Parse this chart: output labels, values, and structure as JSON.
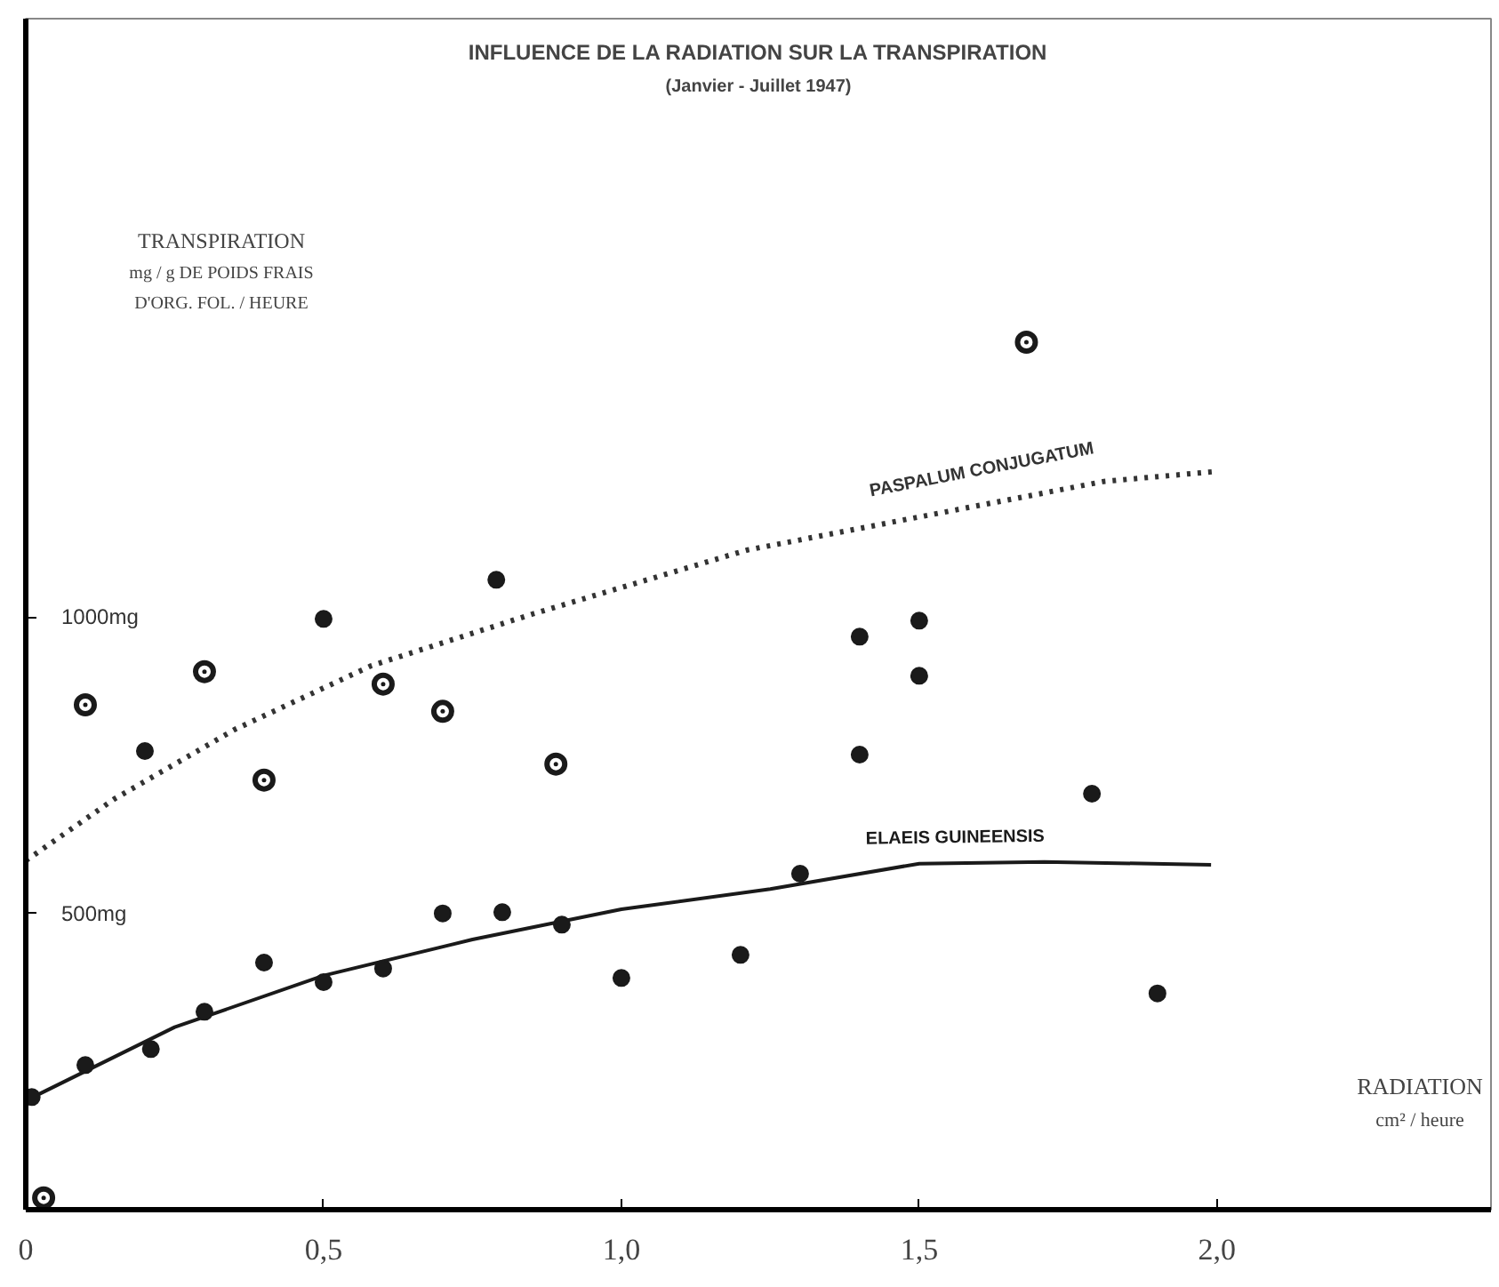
{
  "chart_data": {
    "type": "scatter",
    "title": "INFLUENCE DE LA RADIATION SUR LA TRANSPIRATION",
    "subtitle": "(Janvier - Juillet 1947)",
    "ylabel": "TRANSPIRATION\nmg / g DE POIDS FRAIS\nD'ORG. FOL. / HEURE",
    "xlabel": "RADIATION\ncm² / heure",
    "xlim": [
      0,
      2.46
    ],
    "ylim": [
      0,
      2010
    ],
    "xticks": [
      {
        "value": 0,
        "label": "0"
      },
      {
        "value": 0.5,
        "label": "0,5"
      },
      {
        "value": 1,
        "label": "1,0"
      },
      {
        "value": 1.5,
        "label": "1,5"
      },
      {
        "value": 2,
        "label": "2,0"
      }
    ],
    "yticks": [
      {
        "value": 500,
        "label": "500mg"
      },
      {
        "value": 1000,
        "label": "1000mg"
      }
    ],
    "grid": false,
    "series": [
      {
        "marker": "circle_dot",
        "color": "#1a1a1a",
        "x": [
          0.03,
          0.1,
          0.3,
          0.4,
          0.6,
          0.7,
          0.89,
          1.68
        ],
        "values": [
          20,
          852,
          908,
          725,
          887,
          841,
          752,
          1464
        ]
      },
      {
        "marker": "circle",
        "color": "#1a1a1a",
        "x": [
          0.2,
          0.5,
          0.79,
          1.4,
          1.5,
          1.5,
          1.4,
          1.79,
          0.01,
          0.1,
          0.21,
          0.3,
          0.4,
          0.5,
          0.6,
          0.7,
          0.8,
          0.9,
          1.0,
          1.2,
          1.3,
          1.9
        ],
        "values": [
          774,
          997,
          1063,
          967,
          994,
          901,
          768,
          702,
          190,
          244,
          271,
          334,
          417,
          384,
          407,
          500,
          502,
          481,
          391,
          430,
          567,
          365
        ]
      },
      {
        "type": "line",
        "name": "PASPALUM CONJUGATUM",
        "line_style": "dotted",
        "color": "#333333",
        "x": [
          0,
          0.15,
          0.35,
          0.58,
          0.85,
          1.21,
          1.51,
          1.81,
          2.0
        ],
        "values": [
          589,
          694,
          810,
          918,
          1005,
          1113,
          1171,
          1229,
          1246
        ]
      },
      {
        "type": "line",
        "name": "ELAEIS GUINEENSIS",
        "line_style": "solid",
        "color": "#1a1a1a",
        "x": [
          0,
          0.25,
          0.5,
          0.75,
          1.0,
          1.25,
          1.5,
          1.71,
          1.99
        ],
        "values": [
          184,
          308,
          395,
          456,
          507,
          541,
          584,
          587,
          582
        ]
      }
    ]
  }
}
